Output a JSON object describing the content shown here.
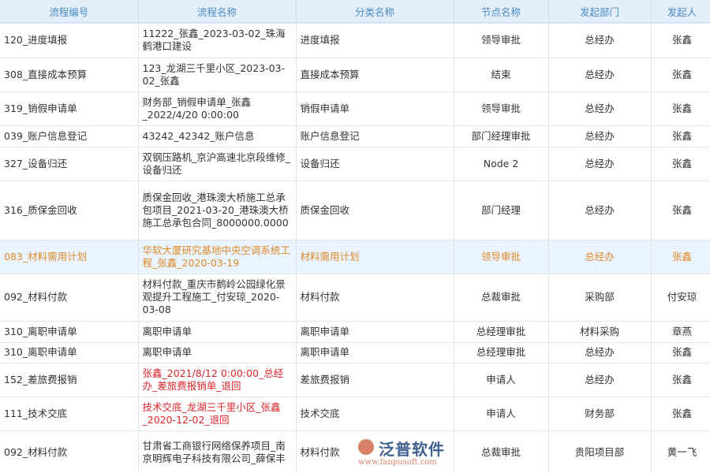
{
  "columns": [
    "流程编号",
    "流程名称",
    "分类名称",
    "节点名称",
    "发起部门",
    "发起人"
  ],
  "rows": [
    {
      "id": "120_进度填报",
      "name": "11222_张鑫_2023-03-02_珠海鹤港口建设",
      "category": "进度填报",
      "node": "领导审批",
      "dept": "总经办",
      "user": "张鑫"
    },
    {
      "id": "308_直接成本预算",
      "name": "123_龙湖三千里小区_2023-03-02_张鑫",
      "category": "直接成本预算",
      "node": "结束",
      "dept": "总经办",
      "user": "张鑫"
    },
    {
      "id": "319_销假申请单",
      "name": "财务部_销假申请单_张鑫_2022/4/20 0:00:00",
      "category": "销假申请单",
      "node": "领导审批",
      "dept": "总经办",
      "user": "张鑫"
    },
    {
      "id": "039_账户信息登记",
      "name": "43242_42342_账户信息",
      "category": "账户信息登记",
      "node": "部门经理审批",
      "dept": "总经办",
      "user": "张鑫"
    },
    {
      "id": "327_设备归还",
      "name": "双钢压路机_京沪高速北京段维修_设备归还",
      "category": "设备归还",
      "node": "Node 2",
      "dept": "总经办",
      "user": "张鑫"
    },
    {
      "id": "316_质保金回收",
      "name": "质保金回收_港珠澳大桥施工总承包项目_2021-03-20_港珠澳大桥施工总承包合同_8000000.0000",
      "category": "质保金回收",
      "node": "部门经理",
      "dept": "总经办",
      "user": "张鑫"
    },
    {
      "id": "083_材料需用计划",
      "name": "华软大厦研究基地中央空调系统工程_张鑫_2020-03-19",
      "category": "材料需用计划",
      "node": "领导审批",
      "dept": "总经办",
      "user": "张鑫",
      "highlight": true
    },
    {
      "id": "092_材料付款",
      "name": "材料付款_重庆市鹅岭公园绿化景观提升工程施工_付安琼_2020-03-08",
      "category": "材料付款",
      "node": "总裁审批",
      "dept": "采购部",
      "user": "付安琼"
    },
    {
      "id": "310_离职申请单",
      "name": "离职申请单",
      "category": "离职申请单",
      "node": "总经理审批",
      "dept": "材料采购",
      "user": "章燕"
    },
    {
      "id": "310_离职申请单",
      "name": "离职申请单",
      "category": "离职申请单",
      "node": "总经理审批",
      "dept": "总经办",
      "user": "张鑫"
    },
    {
      "id": "152_差旅费报销",
      "name": "张鑫_2021/8/12 0:00:00_总经办_差旅费报销单_退回",
      "category": "差旅费报销",
      "node": "申请人",
      "dept": "总经办",
      "user": "张鑫",
      "returned": true
    },
    {
      "id": "111_技术交底",
      "name": "技术交底_龙湖三千里小区_张鑫_2020-12-02_退回",
      "category": "技术交底",
      "node": "申请人",
      "dept": "财务部",
      "user": "张鑫",
      "returned": true
    },
    {
      "id": "092_材料付款",
      "name": "甘肃省工商银行网络保养项目_南京明辉电子科技有限公司_薛保丰",
      "category": "材料付款",
      "node": "总裁审批",
      "dept": "贵阳项目部",
      "user": "黄一飞"
    }
  ],
  "watermark": {
    "brand": "泛普软件",
    "url": "www.fanpusoft.com"
  }
}
